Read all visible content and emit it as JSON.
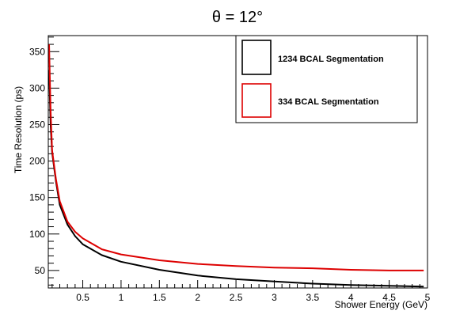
{
  "chart_data": {
    "type": "line",
    "title": "θ = 12°",
    "xlabel": "Shower Energy (GeV)",
    "ylabel": "Time Resolution (ps)",
    "xlim": [
      0.05,
      5.0
    ],
    "ylim": [
      26,
      372
    ],
    "x_ticks": [
      0.5,
      1,
      1.5,
      2,
      2.5,
      3,
      3.5,
      4,
      4.5,
      5
    ],
    "x_tick_labels": [
      "0.5",
      "1",
      "1.5",
      "2",
      "2.5",
      "3",
      "3.5",
      "4",
      "4.5",
      "5"
    ],
    "y_ticks": [
      50,
      100,
      150,
      200,
      250,
      300,
      350
    ],
    "y_tick_labels": [
      "50",
      "100",
      "150",
      "200",
      "250",
      "300",
      "350"
    ],
    "grid": false,
    "legend_position": "top-right",
    "series": [
      {
        "name": "1234 BCAL Segmentation",
        "color": "#000000",
        "x": [
          0.06,
          0.08,
          0.1,
          0.15,
          0.2,
          0.3,
          0.4,
          0.5,
          0.75,
          1.0,
          1.5,
          2.0,
          2.5,
          3.0,
          3.5,
          4.0,
          4.5,
          4.95
        ],
        "y": [
          325,
          250,
          212,
          172,
          140,
          113,
          97,
          86,
          71,
          62,
          51,
          43,
          38,
          35,
          32,
          30,
          29,
          28
        ]
      },
      {
        "name": "334 BCAL Segmentation",
        "color": "#dd0000",
        "x": [
          0.06,
          0.08,
          0.1,
          0.15,
          0.2,
          0.3,
          0.4,
          0.5,
          0.75,
          1.0,
          1.5,
          2.0,
          2.5,
          3.0,
          3.5,
          4.0,
          4.5,
          4.95
        ],
        "y": [
          360,
          270,
          215,
          175,
          145,
          117,
          103,
          94,
          79,
          72,
          64,
          59,
          56,
          54,
          53,
          51,
          50,
          50
        ]
      }
    ]
  }
}
